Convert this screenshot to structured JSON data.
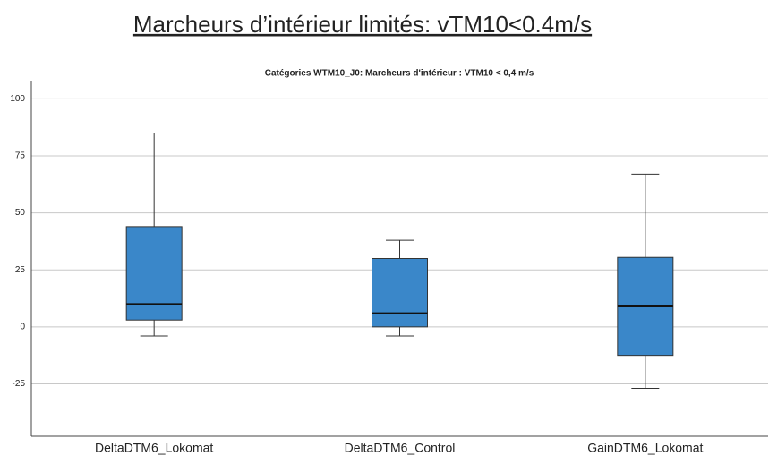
{
  "heading": "Marcheurs d’intérieur limités: vTM10<0.4m/s",
  "chart_data": {
    "type": "box",
    "title": "Catégories WTM10_J0: Marcheurs d'intérieur : VTM10 < 0,4 m/s",
    "categories": [
      "DeltaDTM6_Lokomat",
      "DeltaDTM6_Control",
      "GainDTM6_Lokomat"
    ],
    "boxes": [
      {
        "low": -4,
        "q1": 3,
        "median": 10,
        "q3": 44,
        "high": 85
      },
      {
        "low": -4,
        "q1": 0,
        "median": 6,
        "q3": 30,
        "high": 38
      },
      {
        "low": -27,
        "q1": -12.5,
        "median": 9,
        "q3": 30.5,
        "high": 67
      }
    ],
    "color": "#3a87c9",
    "ylim": [
      -48,
      108
    ],
    "yticks": [
      -25,
      0,
      25,
      50,
      75,
      100
    ],
    "grid": true
  }
}
